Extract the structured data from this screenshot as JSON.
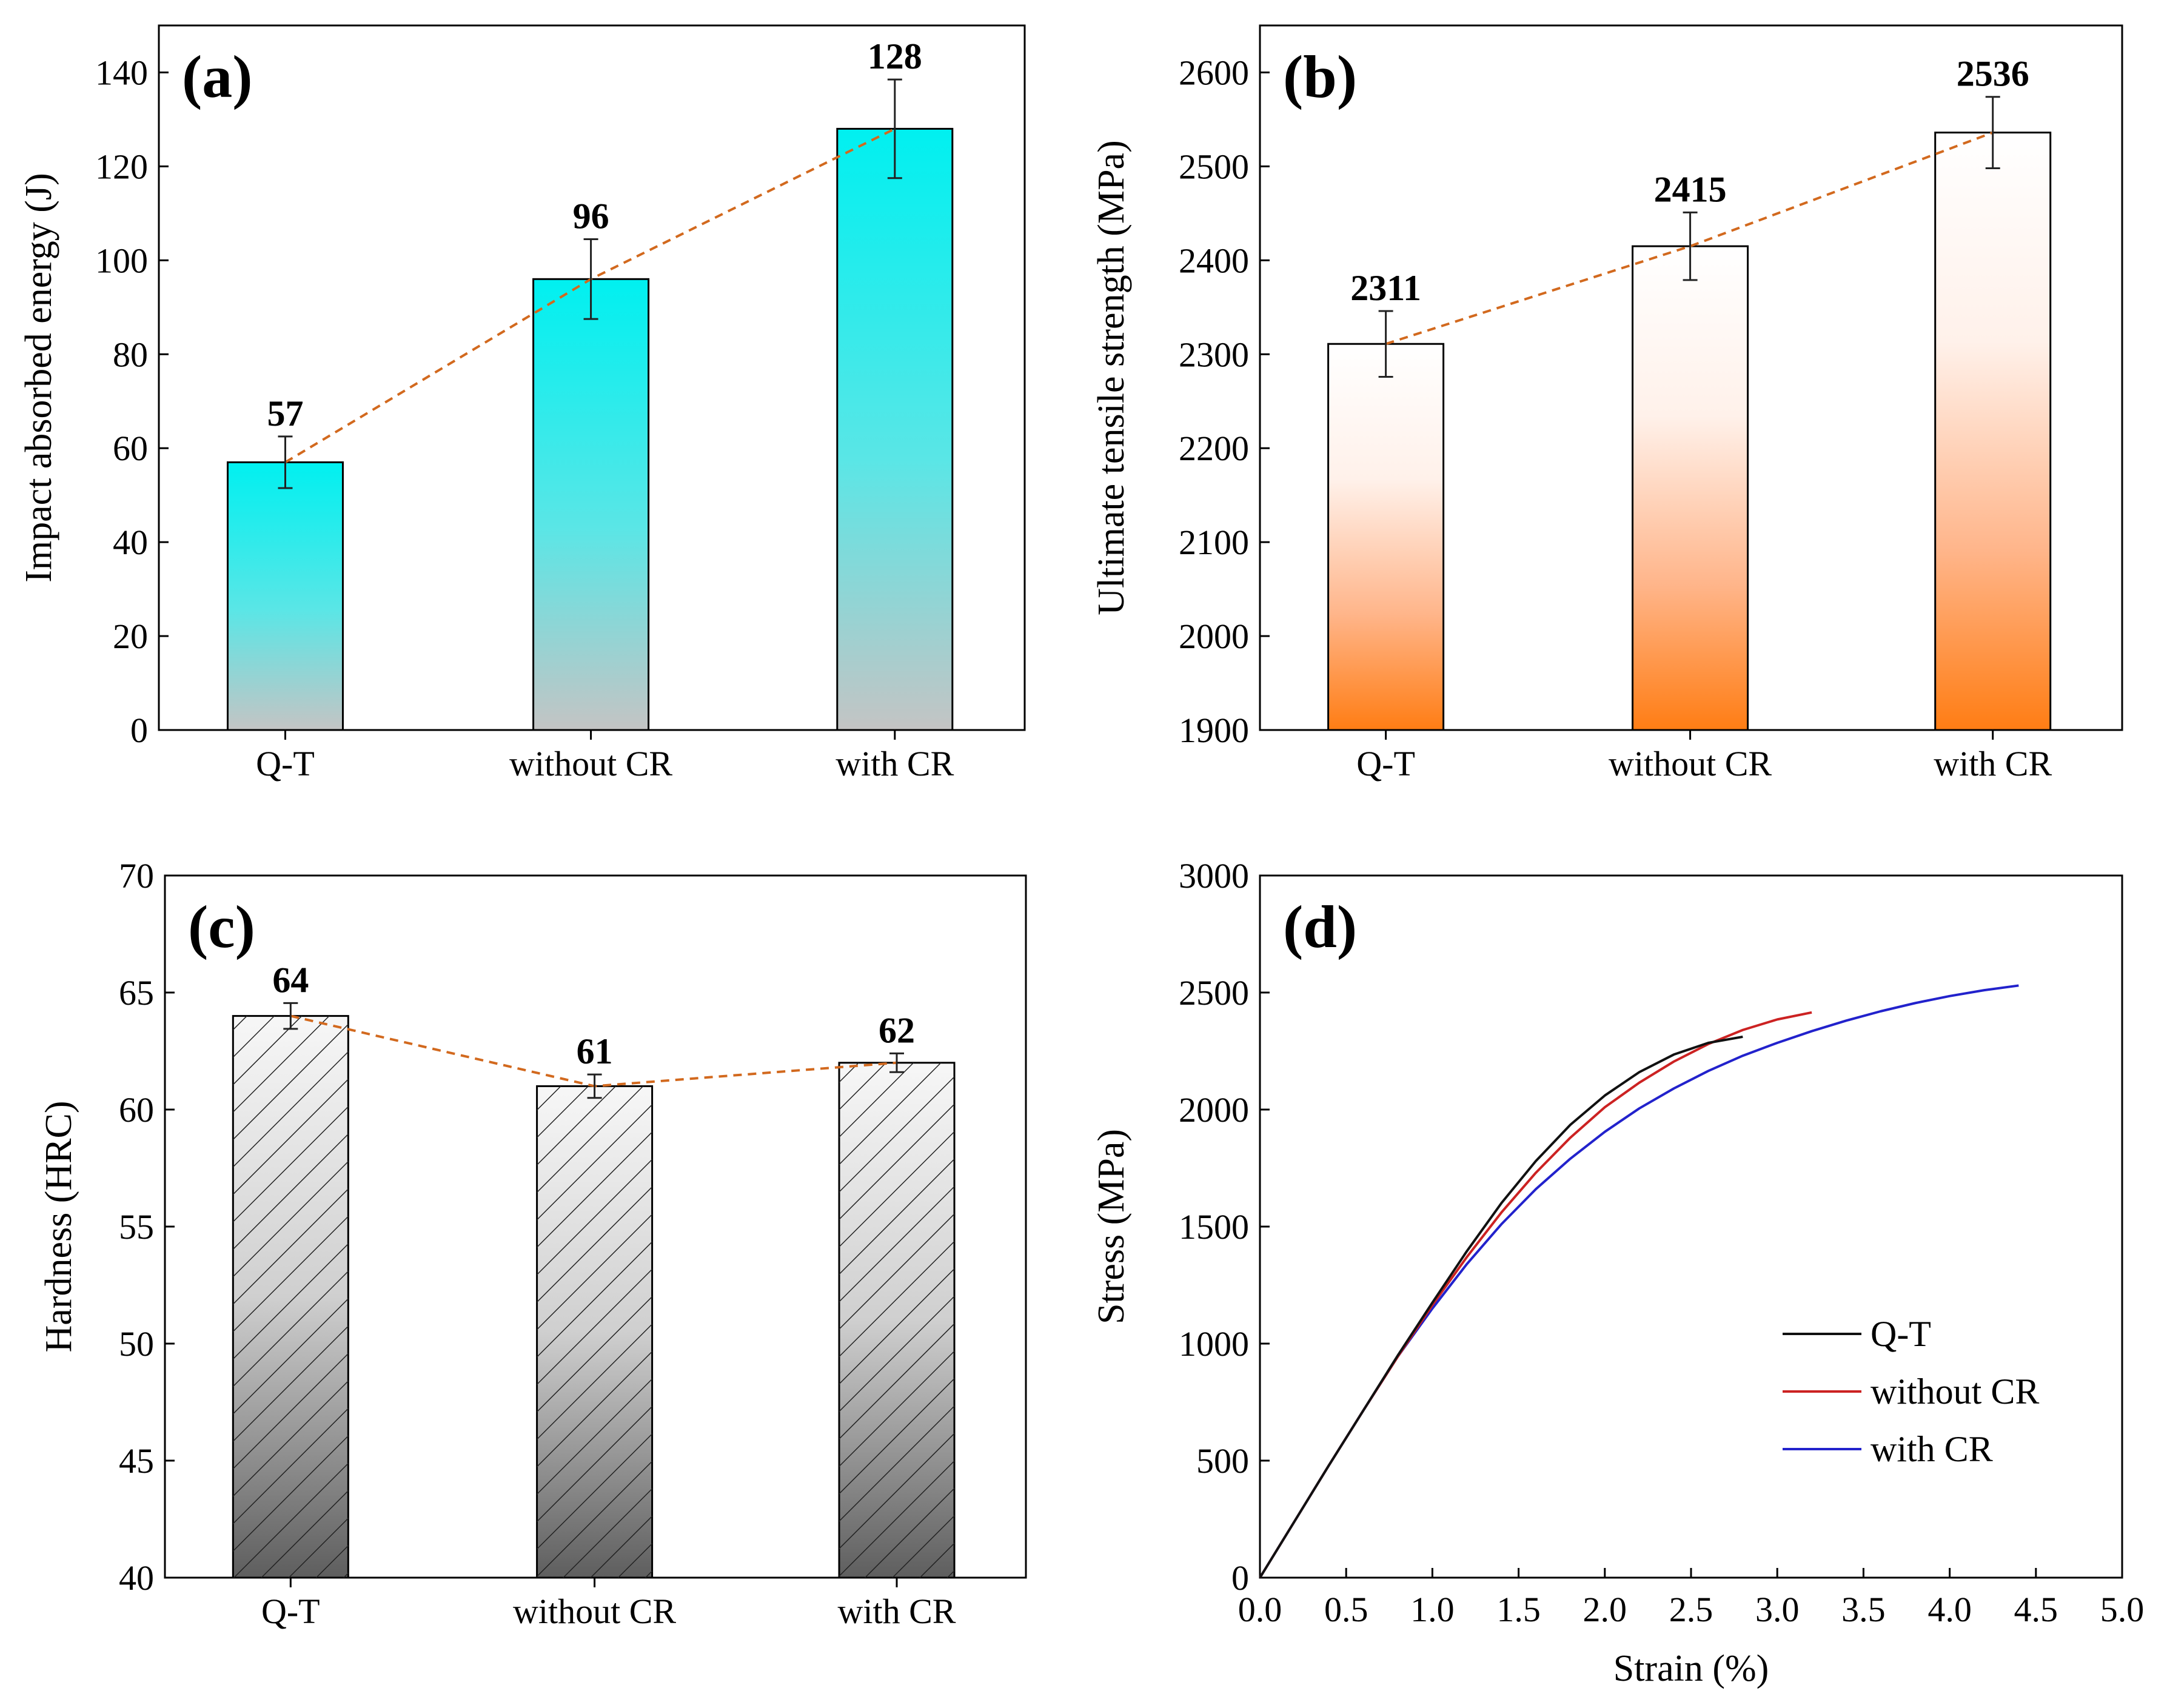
{
  "colors": {
    "dash_line": "#d2691e",
    "cyan_top": "#00f0f0",
    "cyan_bottom": "#c4c4c4",
    "orange_bottom": "#ff7d14",
    "grey_top": "#f5f5f5",
    "grey_bottom": "#5e5e5e",
    "qt": "#111111",
    "without_cr": "#cc2222",
    "with_cr": "#2222cc"
  },
  "chart_data": [
    {
      "id": "a",
      "type": "bar",
      "panel_label": "(a)",
      "categories": [
        "Q-T",
        "without CR",
        "with CR"
      ],
      "values": [
        57,
        96,
        128
      ],
      "errors": [
        5.5,
        8.5,
        10.5
      ],
      "value_labels": [
        "57",
        "96",
        "128"
      ],
      "ylabel": "Impact absorbed energy (J)",
      "xlabel": "",
      "ylim": [
        0,
        150
      ],
      "yticks": [
        0,
        20,
        40,
        60,
        80,
        100,
        120,
        140
      ],
      "fill": "cyan-gradient",
      "trend_line": "dashed"
    },
    {
      "id": "b",
      "type": "bar",
      "panel_label": "(b)",
      "categories": [
        "Q-T",
        "without CR",
        "with CR"
      ],
      "values": [
        2311,
        2415,
        2536
      ],
      "errors": [
        35,
        36,
        38
      ],
      "value_labels": [
        "2311",
        "2415",
        "2536"
      ],
      "ylabel": "Ultimate tensile strength (MPa)",
      "xlabel": "",
      "ylim": [
        1900,
        2650
      ],
      "yticks": [
        1900,
        2000,
        2100,
        2200,
        2300,
        2400,
        2500,
        2600
      ],
      "fill": "orange-gradient",
      "trend_line": "dashed"
    },
    {
      "id": "c",
      "type": "bar",
      "panel_label": "(c)",
      "categories": [
        "Q-T",
        "without CR",
        "with CR"
      ],
      "values": [
        64,
        61,
        62
      ],
      "errors": [
        0.55,
        0.5,
        0.4
      ],
      "value_labels": [
        "64",
        "61",
        "62"
      ],
      "ylabel": "Hardness (HRC)",
      "xlabel": "",
      "ylim": [
        40,
        70
      ],
      "yticks": [
        40,
        45,
        50,
        55,
        60,
        65,
        70
      ],
      "fill": "hatched-grey-gradient",
      "trend_line": "dashed"
    },
    {
      "id": "d",
      "type": "line",
      "panel_label": "(d)",
      "xlabel": "Strain (%)",
      "ylabel": "Stress (MPa)",
      "xlim": [
        0,
        5
      ],
      "ylim": [
        0,
        3000
      ],
      "xticks": [
        "0.0",
        "0.5",
        "1.0",
        "1.5",
        "2.0",
        "2.5",
        "3.0",
        "3.5",
        "4.0",
        "4.5",
        "5.0"
      ],
      "yticks": [
        0,
        500,
        1000,
        1500,
        2000,
        2500,
        3000
      ],
      "legend_position": "bottom-right",
      "series": [
        {
          "name": "Q-T",
          "color": "#111111",
          "x": [
            0,
            0.2,
            0.4,
            0.6,
            0.8,
            1.0,
            1.2,
            1.4,
            1.6,
            1.8,
            2.0,
            2.2,
            2.4,
            2.6,
            2.8
          ],
          "y": [
            0,
            240,
            480,
            715,
            950,
            1175,
            1395,
            1600,
            1780,
            1935,
            2060,
            2160,
            2235,
            2285,
            2311
          ]
        },
        {
          "name": "without CR",
          "color": "#cc2222",
          "x": [
            0,
            0.2,
            0.4,
            0.6,
            0.8,
            1.0,
            1.2,
            1.4,
            1.6,
            1.8,
            2.0,
            2.2,
            2.4,
            2.6,
            2.8,
            3.0,
            3.2
          ],
          "y": [
            0,
            240,
            480,
            715,
            945,
            1165,
            1370,
            1560,
            1730,
            1880,
            2010,
            2115,
            2205,
            2280,
            2340,
            2385,
            2415
          ]
        },
        {
          "name": "with CR",
          "color": "#2222cc",
          "x": [
            0,
            0.2,
            0.4,
            0.6,
            0.8,
            1.0,
            1.2,
            1.4,
            1.6,
            1.8,
            2.0,
            2.2,
            2.4,
            2.6,
            2.8,
            3.0,
            3.2,
            3.4,
            3.6,
            3.8,
            4.0,
            4.2,
            4.4
          ],
          "y": [
            0,
            240,
            480,
            715,
            945,
            1150,
            1340,
            1510,
            1660,
            1790,
            1905,
            2005,
            2090,
            2165,
            2230,
            2285,
            2335,
            2380,
            2420,
            2455,
            2485,
            2510,
            2530
          ]
        }
      ]
    }
  ]
}
